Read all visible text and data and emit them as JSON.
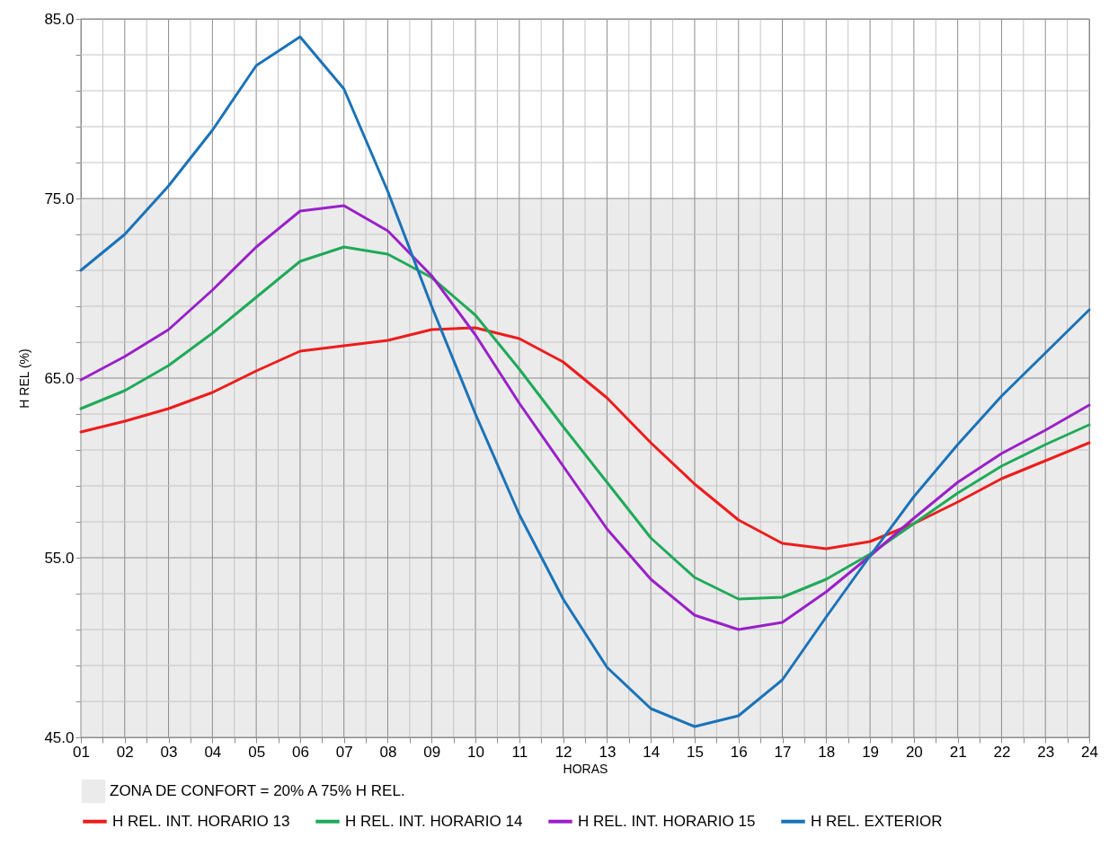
{
  "chart_data": {
    "type": "line",
    "xlabel": "HORAS",
    "ylabel": "H REL (%)",
    "x": [
      1,
      2,
      3,
      4,
      5,
      6,
      7,
      8,
      9,
      10,
      11,
      12,
      13,
      14,
      15,
      16,
      17,
      18,
      19,
      20,
      21,
      22,
      23,
      24
    ],
    "xlim": [
      1,
      24
    ],
    "xticks": [
      {
        "value": 1,
        "label": "01"
      },
      {
        "value": 1.5,
        "label": null
      },
      {
        "value": 2,
        "label": "02"
      },
      {
        "value": 2.5,
        "label": null
      },
      {
        "value": 3,
        "label": "03"
      },
      {
        "value": 3.5,
        "label": null
      },
      {
        "value": 4,
        "label": "04"
      },
      {
        "value": 4.5,
        "label": null
      },
      {
        "value": 5,
        "label": "05"
      },
      {
        "value": 5.5,
        "label": null
      },
      {
        "value": 6,
        "label": "06"
      },
      {
        "value": 6.5,
        "label": null
      },
      {
        "value": 7,
        "label": "07"
      },
      {
        "value": 7.5,
        "label": null
      },
      {
        "value": 8,
        "label": "08"
      },
      {
        "value": 8.5,
        "label": null
      },
      {
        "value": 9,
        "label": "09"
      },
      {
        "value": 9.5,
        "label": null
      },
      {
        "value": 10,
        "label": "10"
      },
      {
        "value": 10.5,
        "label": null
      },
      {
        "value": 11,
        "label": "11"
      },
      {
        "value": 11.5,
        "label": null
      },
      {
        "value": 12,
        "label": "12"
      },
      {
        "value": 12.5,
        "label": null
      },
      {
        "value": 13,
        "label": "13"
      },
      {
        "value": 13.5,
        "label": null
      },
      {
        "value": 14,
        "label": "14"
      },
      {
        "value": 14.5,
        "label": null
      },
      {
        "value": 15,
        "label": "15"
      },
      {
        "value": 15.5,
        "label": null
      },
      {
        "value": 16,
        "label": "16"
      },
      {
        "value": 16.5,
        "label": null
      },
      {
        "value": 17,
        "label": "17"
      },
      {
        "value": 17.5,
        "label": null
      },
      {
        "value": 18,
        "label": "18"
      },
      {
        "value": 18.5,
        "label": null
      },
      {
        "value": 19,
        "label": "19"
      },
      {
        "value": 19.5,
        "label": null
      },
      {
        "value": 20,
        "label": "20"
      },
      {
        "value": 20.5,
        "label": null
      },
      {
        "value": 21,
        "label": "21"
      },
      {
        "value": 21.5,
        "label": null
      },
      {
        "value": 22,
        "label": "22"
      },
      {
        "value": 22.5,
        "label": null
      },
      {
        "value": 23,
        "label": "23"
      },
      {
        "value": 23.5,
        "label": null
      },
      {
        "value": 24,
        "label": "24"
      }
    ],
    "ylim": [
      45,
      85
    ],
    "yticks": [
      {
        "value": 45,
        "label": "45.0"
      },
      {
        "value": 47,
        "label": null
      },
      {
        "value": 49,
        "label": null
      },
      {
        "value": 51,
        "label": null
      },
      {
        "value": 53,
        "label": null
      },
      {
        "value": 55,
        "label": "55.0"
      },
      {
        "value": 57,
        "label": null
      },
      {
        "value": 59,
        "label": null
      },
      {
        "value": 61,
        "label": null
      },
      {
        "value": 63,
        "label": null
      },
      {
        "value": 65,
        "label": "65.0"
      },
      {
        "value": 67,
        "label": null
      },
      {
        "value": 69,
        "label": null
      },
      {
        "value": 71,
        "label": null
      },
      {
        "value": 73,
        "label": null
      },
      {
        "value": 75,
        "label": "75.0"
      },
      {
        "value": 77,
        "label": null
      },
      {
        "value": 79,
        "label": null
      },
      {
        "value": 81,
        "label": null
      },
      {
        "value": 83,
        "label": null
      },
      {
        "value": 85,
        "label": "85.0"
      }
    ],
    "grid": true,
    "legend": "bottom",
    "marker": "none",
    "line_style": "solid",
    "bands": [
      {
        "axis": "y",
        "from": 45,
        "to": 75,
        "label": "ZONA DE CONFORT = 20% A 75% H REL.",
        "color": "#ebebeb"
      }
    ],
    "series": [
      {
        "name": "H REL. INT. HORARIO 13",
        "color": "#ee1c1c",
        "values": [
          62.0,
          62.6,
          63.3,
          64.2,
          65.4,
          66.5,
          66.8,
          67.1,
          67.7,
          67.8,
          67.2,
          65.9,
          63.9,
          61.4,
          59.1,
          57.1,
          55.8,
          55.5,
          55.9,
          56.9,
          58.1,
          59.4,
          60.4,
          61.4
        ]
      },
      {
        "name": "H REL. INT. HORARIO 14",
        "color": "#1faa59",
        "values": [
          63.3,
          64.3,
          65.7,
          67.5,
          69.5,
          71.5,
          72.3,
          71.9,
          70.6,
          68.5,
          65.5,
          62.3,
          59.2,
          56.1,
          53.9,
          52.7,
          52.8,
          53.8,
          55.2,
          56.9,
          58.6,
          60.1,
          61.3,
          62.4
        ]
      },
      {
        "name": "H REL. INT. HORARIO 15",
        "color": "#9a20c8",
        "values": [
          64.9,
          66.2,
          67.7,
          69.9,
          72.3,
          74.3,
          74.6,
          73.2,
          70.7,
          67.4,
          63.6,
          60.1,
          56.6,
          53.8,
          51.8,
          51.0,
          51.4,
          53.1,
          55.1,
          57.2,
          59.2,
          60.8,
          62.1,
          63.5
        ]
      },
      {
        "name": "H REL. EXTERIOR",
        "color": "#1a73b8",
        "values": [
          71.0,
          73.0,
          75.7,
          78.8,
          82.4,
          84.0,
          81.1,
          75.4,
          69.0,
          63.0,
          57.4,
          52.7,
          48.9,
          46.6,
          45.6,
          46.2,
          48.2,
          51.7,
          55.1,
          58.4,
          61.3,
          64.0,
          66.4,
          68.8
        ]
      }
    ]
  }
}
